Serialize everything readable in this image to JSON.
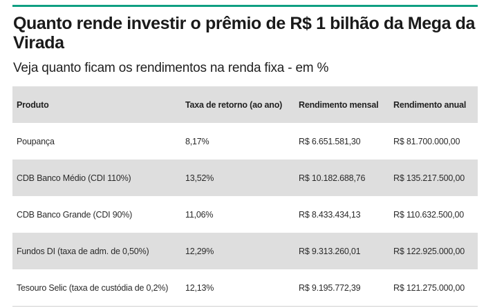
{
  "colors": {
    "accent_bar": "#0f9f82",
    "header_row_bg": "#dedede",
    "shaded_row_bg": "#dedede"
  },
  "heading": {
    "title": "Quanto rende investir o prêmio de R$ 1 bilhão da Mega da Virada",
    "subtitle": "Veja quanto ficam os rendimentos na renda fixa - em %"
  },
  "table": {
    "headers": [
      "Produto",
      "Taxa de retorno (ao ano)",
      "Rendimento mensal",
      "Rendimento anual"
    ],
    "rows": [
      [
        "Poupança",
        "8,17%",
        "R$ 6.651.581,30",
        "R$ 81.700.000,00"
      ],
      [
        "CDB Banco Médio (CDI 110%)",
        "13,52%",
        "R$ 10.182.688,76",
        "R$ 135.217.500,00"
      ],
      [
        "CDB Banco Grande (CDI 90%)",
        "11,06%",
        "R$ 8.433.434,13",
        "R$ 110.632.500,00"
      ],
      [
        "Fundos DI (taxa de adm. de 0,50%)",
        "12,29%",
        "R$ 9.313.260,01",
        "R$ 122.925.000,00"
      ],
      [
        "Tesouro Selic (taxa de custódia de 0,2%)",
        "12,13%",
        "R$ 9.195.772,39",
        "R$ 121.275.000,00"
      ]
    ]
  }
}
